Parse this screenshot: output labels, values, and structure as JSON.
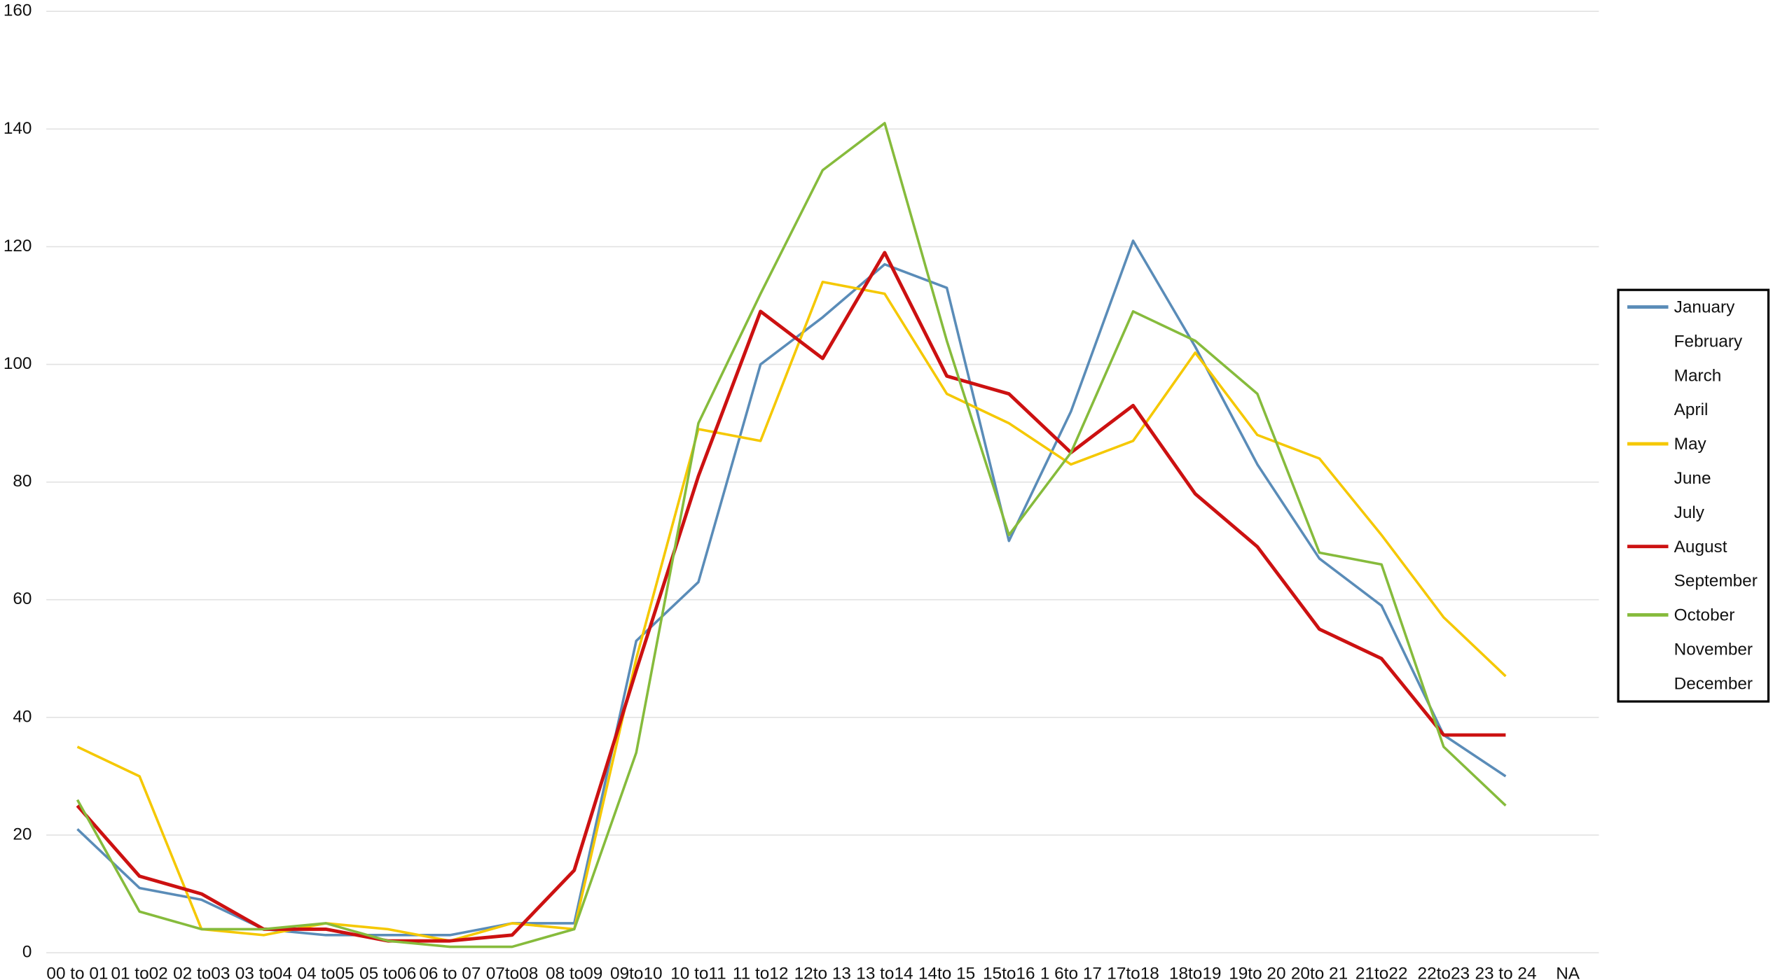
{
  "chart_data": {
    "type": "line",
    "categories": [
      "00 to 01",
      "01 to02",
      "02 to03",
      "03 to04",
      "04 to05",
      "05 to06",
      "06 to 07",
      "07to08",
      "08 to09",
      "09to10",
      "10 to11",
      "11 to12",
      "12to 13",
      "13 to14",
      "14to 15",
      "15to16",
      "1 6to 17",
      "17to18",
      "18to19",
      "19to 20",
      "20to 21",
      "21to22",
      "22to23",
      "23 to 24",
      "NA"
    ],
    "series": [
      {
        "name": "January",
        "color": "#5a8cb8",
        "values": [
          21,
          11,
          9,
          4,
          3,
          3,
          3,
          5,
          5,
          53,
          63,
          100,
          108,
          117,
          113,
          70,
          92,
          121,
          103,
          83,
          67,
          59,
          37,
          30,
          null
        ]
      },
      {
        "name": "February",
        "values": [
          null,
          null,
          null,
          null,
          null,
          null,
          null,
          null,
          null,
          null,
          null,
          null,
          null,
          null,
          null,
          null,
          null,
          null,
          null,
          null,
          null,
          null,
          null,
          null,
          null
        ]
      },
      {
        "name": "March",
        "values": [
          null,
          null,
          null,
          null,
          null,
          null,
          null,
          null,
          null,
          null,
          null,
          null,
          null,
          null,
          null,
          null,
          null,
          null,
          null,
          null,
          null,
          null,
          null,
          null,
          null
        ]
      },
      {
        "name": "April",
        "values": [
          null,
          null,
          null,
          null,
          null,
          null,
          null,
          null,
          null,
          null,
          null,
          null,
          null,
          null,
          null,
          null,
          null,
          null,
          null,
          null,
          null,
          null,
          null,
          null,
          null
        ]
      },
      {
        "name": "May",
        "color": "#f5c800",
        "values": [
          35,
          30,
          4,
          3,
          5,
          4,
          2,
          5,
          4,
          50,
          89,
          87,
          114,
          112,
          95,
          90,
          83,
          87,
          102,
          88,
          84,
          71,
          57,
          47,
          null
        ]
      },
      {
        "name": "June",
        "values": [
          null,
          null,
          null,
          null,
          null,
          null,
          null,
          null,
          null,
          null,
          null,
          null,
          null,
          null,
          null,
          null,
          null,
          null,
          null,
          null,
          null,
          null,
          null,
          null,
          null
        ]
      },
      {
        "name": "July",
        "values": [
          null,
          null,
          null,
          null,
          null,
          null,
          null,
          null,
          null,
          null,
          null,
          null,
          null,
          null,
          null,
          null,
          null,
          null,
          null,
          null,
          null,
          null,
          null,
          null,
          null
        ]
      },
      {
        "name": "August",
        "color": "#cc1111",
        "values": [
          25,
          13,
          10,
          4,
          4,
          2,
          2,
          3,
          14,
          48,
          81,
          109,
          101,
          119,
          98,
          95,
          85,
          93,
          78,
          69,
          55,
          50,
          37,
          37,
          null
        ]
      },
      {
        "name": "September",
        "values": [
          null,
          null,
          null,
          null,
          null,
          null,
          null,
          null,
          null,
          null,
          null,
          null,
          null,
          null,
          null,
          null,
          null,
          null,
          null,
          null,
          null,
          null,
          null,
          null,
          null
        ]
      },
      {
        "name": "October",
        "color": "#86bb3c",
        "values": [
          26,
          7,
          4,
          4,
          5,
          2,
          1,
          1,
          4,
          34,
          90,
          112,
          133,
          141,
          104,
          71,
          85,
          109,
          104,
          95,
          68,
          66,
          35,
          25,
          null
        ]
      },
      {
        "name": "November",
        "values": [
          null,
          null,
          null,
          null,
          null,
          null,
          null,
          null,
          null,
          null,
          null,
          null,
          null,
          null,
          null,
          null,
          null,
          null,
          null,
          null,
          null,
          null,
          null,
          null,
          null
        ]
      },
      {
        "name": "December",
        "values": [
          null,
          null,
          null,
          null,
          null,
          null,
          null,
          null,
          null,
          null,
          null,
          null,
          null,
          null,
          null,
          null,
          null,
          null,
          null,
          null,
          null,
          null,
          null,
          null,
          null
        ]
      }
    ],
    "ylim": [
      0,
      160
    ],
    "yticks": [
      0,
      20,
      40,
      60,
      80,
      100,
      120,
      140,
      160
    ],
    "grid": true,
    "legend": "right"
  }
}
